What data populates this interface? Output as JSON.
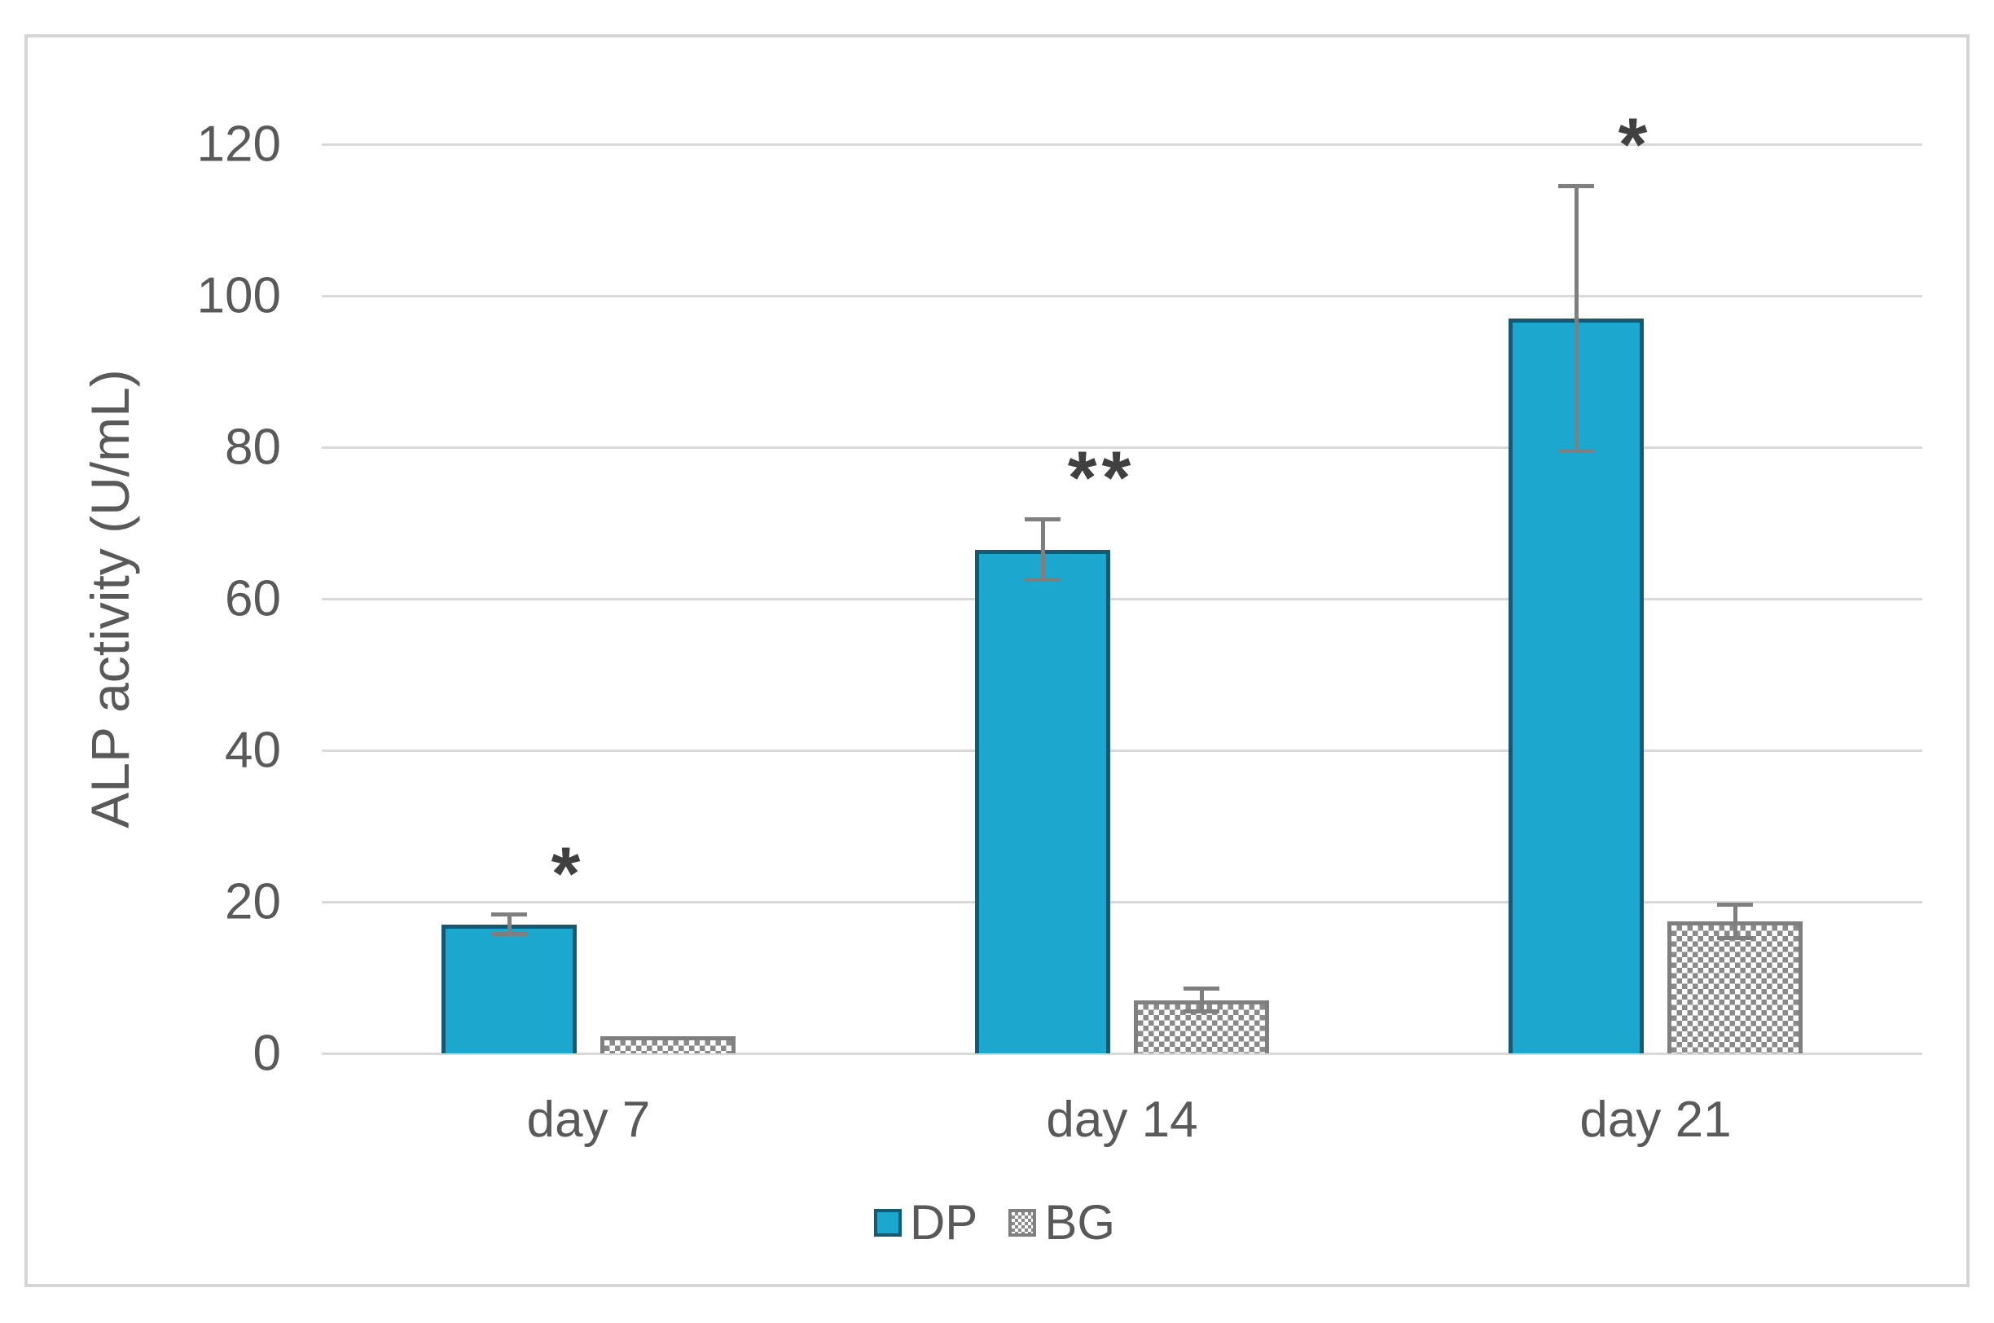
{
  "figure": {
    "background": "#FFFFFF",
    "frame_border_color": "#D5D5D5"
  },
  "chart_data": {
    "type": "bar",
    "title": "",
    "xlabel": "",
    "ylabel": "ALP activity (U/mL)",
    "categories": [
      "day 7",
      "day 14",
      "day 21"
    ],
    "series": [
      {
        "name": "DP",
        "style": "solid",
        "fill": "#1BA7CE",
        "border": "#155A72",
        "values": [
          17,
          66.5,
          97
        ],
        "errors": [
          1.3,
          4,
          17.5
        ]
      },
      {
        "name": "BG",
        "style": "checker",
        "fill": "#8A8A8A",
        "border": "#7F7F7F",
        "values": [
          2.3,
          7,
          17.4
        ],
        "errors": [
          0,
          1.5,
          2.2
        ]
      }
    ],
    "yticks": [
      0,
      20,
      40,
      60,
      80,
      100,
      120
    ],
    "ylim": [
      0,
      120
    ],
    "grid": true,
    "legend_position": "bottom",
    "annotations": [
      {
        "category": "day 7",
        "series": "DP",
        "text": "*"
      },
      {
        "category": "day 14",
        "series": "DP",
        "text": "**"
      },
      {
        "category": "day 21",
        "series": "DP",
        "text": "*"
      }
    ],
    "error_bar_color": "#7F7F7F",
    "gridline_color": "#D9D9D9",
    "text_color": "#595959",
    "annotation_color": "#404040"
  }
}
